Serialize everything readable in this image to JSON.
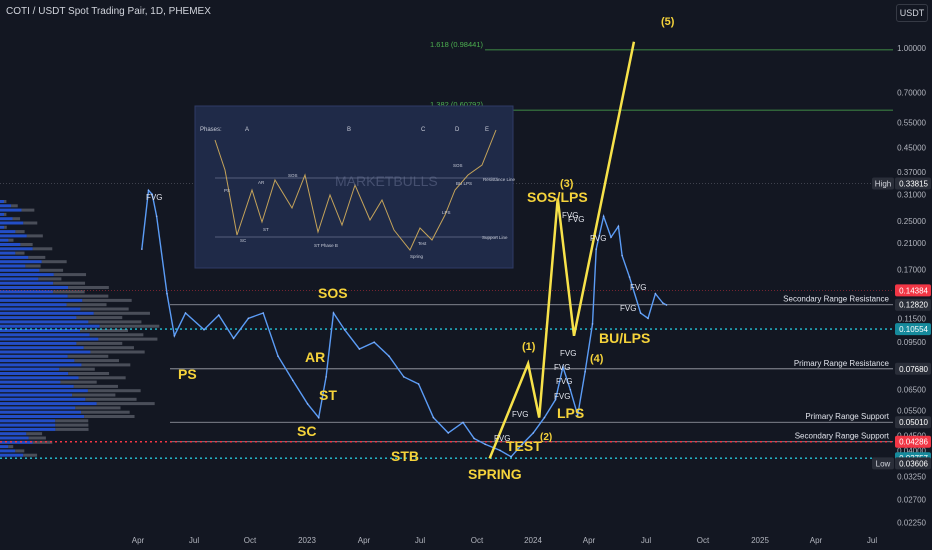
{
  "header": {
    "title": "COTI / USDT Spot Trading Pair, 1D, PHEMEX",
    "currency_button": "USDT"
  },
  "colors": {
    "background": "#131722",
    "price_line": "#5b9cf6",
    "wave": "#f7e24a",
    "label": "#f5d33b",
    "fib": "#4caf50",
    "highlight_red": "#f23645",
    "highlight_cyan": "#26c6da",
    "volume_blue": "#2962ff"
  },
  "chart_data": {
    "type": "line",
    "title": "COTI / USDT Spot Trading Pair, 1D, PHEMEX",
    "yscale": "log",
    "ylim": [
      0.0215,
      1.25
    ],
    "x_ticks": [
      "Apr",
      "Jul",
      "Oct",
      "2023",
      "Apr",
      "Jul",
      "Oct",
      "2024",
      "Apr",
      "Jul",
      "Oct",
      "2025",
      "Apr",
      "Jul"
    ],
    "y_ticks": [
      1.0,
      0.7,
      0.55,
      0.45,
      0.37,
      0.31,
      0.25,
      0.21,
      0.17,
      0.115,
      0.095,
      0.065,
      0.055,
      0.045,
      0.04,
      0.0325,
      0.027,
      0.0225
    ],
    "price_tags": [
      {
        "label": "High",
        "value": 0.33815
      },
      {
        "label": "",
        "value": 0.14384
      },
      {
        "label": "",
        "value": 0.1282
      },
      {
        "label": "",
        "value": 0.10554
      },
      {
        "label": "",
        "value": 0.0768
      },
      {
        "label": "",
        "value": 0.0501
      },
      {
        "label": "",
        "value": 0.04286
      },
      {
        "label": "",
        "value": 0.03757
      },
      {
        "label": "Low",
        "value": 0.03606
      }
    ],
    "levels": [
      {
        "name": "Secondary Range Resistance",
        "value": 0.1282
      },
      {
        "name": "Primary Range Resistance",
        "value": 0.0768
      },
      {
        "name": "Primary Range Support",
        "value": 0.0501
      },
      {
        "name": "Secondary Range Support",
        "value": 0.04286
      }
    ],
    "fib_levels": [
      {
        "label": "1.618 (0.98441)",
        "value": 0.98441
      },
      {
        "label": "1.382 (0.60792)",
        "value": 0.60792
      }
    ],
    "series": [
      {
        "name": "",
        "points": [
          [
            0.016,
            0.2
          ],
          [
            0.025,
            0.32
          ],
          [
            0.03,
            0.31
          ],
          [
            0.036,
            0.26
          ],
          [
            0.05,
            0.14
          ],
          [
            0.06,
            0.1
          ],
          [
            0.075,
            0.12
          ],
          [
            0.1,
            0.105
          ],
          [
            0.12,
            0.118
          ],
          [
            0.14,
            0.098
          ],
          [
            0.16,
            0.115
          ],
          [
            0.18,
            0.12
          ],
          [
            0.2,
            0.085
          ],
          [
            0.22,
            0.07
          ],
          [
            0.24,
            0.058
          ],
          [
            0.255,
            0.052
          ],
          [
            0.265,
            0.072
          ],
          [
            0.275,
            0.12
          ],
          [
            0.29,
            0.105
          ],
          [
            0.31,
            0.09
          ],
          [
            0.33,
            0.095
          ],
          [
            0.35,
            0.085
          ],
          [
            0.37,
            0.072
          ],
          [
            0.39,
            0.068
          ],
          [
            0.41,
            0.052
          ],
          [
            0.43,
            0.046
          ],
          [
            0.45,
            0.05
          ],
          [
            0.465,
            0.044
          ],
          [
            0.48,
            0.042
          ],
          [
            0.5,
            0.04
          ],
          [
            0.515,
            0.038
          ],
          [
            0.53,
            0.042
          ],
          [
            0.545,
            0.046
          ],
          [
            0.56,
            0.052
          ],
          [
            0.575,
            0.06
          ],
          [
            0.585,
            0.078
          ],
          [
            0.595,
            0.065
          ],
          [
            0.605,
            0.053
          ],
          [
            0.615,
            0.075
          ],
          [
            0.625,
            0.11
          ],
          [
            0.63,
            0.2
          ],
          [
            0.64,
            0.26
          ],
          [
            0.65,
            0.22
          ],
          [
            0.66,
            0.24
          ],
          [
            0.665,
            0.19
          ],
          [
            0.675,
            0.16
          ],
          [
            0.69,
            0.12
          ],
          [
            0.7,
            0.115
          ],
          [
            0.71,
            0.14
          ],
          [
            0.72,
            0.13
          ],
          [
            0.725,
            0.128
          ]
        ]
      }
    ],
    "annotations": [
      {
        "text": "PS",
        "x": "Apr 2022"
      },
      {
        "text": "SC",
        "x": "Nov 2022"
      },
      {
        "text": "AR",
        "x": "Dec 2022"
      },
      {
        "text": "ST",
        "x": "Jan 2023"
      },
      {
        "text": "SOS",
        "x": "Jan 2023"
      },
      {
        "text": "STB",
        "x": "Jul 2023"
      },
      {
        "text": "SPRING",
        "x": "Oct 2023"
      },
      {
        "text": "TEST",
        "x": "Nov 2023"
      },
      {
        "text": "(1)",
        "x": "Jan 2024"
      },
      {
        "text": "(2)",
        "x": "Feb 2024"
      },
      {
        "text": "LPS",
        "x": "Feb 2024"
      },
      {
        "text": "(3)",
        "x": "Mar 2024"
      },
      {
        "text": "SOS/LPS",
        "x": "Mar 2024"
      },
      {
        "text": "(4)",
        "x": "May 2024"
      },
      {
        "text": "BU/LPS",
        "x": "May 2024"
      },
      {
        "text": "(5)",
        "x": "Aug 2024"
      }
    ],
    "fvg_labels": [
      "FVG",
      "FVG",
      "FVG",
      "FVG",
      "FVG",
      "FVG",
      "FVG",
      "FVG",
      "FVG",
      "FVG",
      "FVG",
      "FVG"
    ],
    "inset": {
      "phases_label": "Phases:",
      "phases": [
        "A",
        "B",
        "C",
        "D",
        "E"
      ],
      "labels": [
        "PS",
        "AR",
        "SC",
        "ST",
        "SOS",
        "ST Phase B",
        "Spring",
        "Test",
        "LPS",
        "SOS",
        "BU LPS",
        "Resistance Line",
        "Support Line",
        "MARKETBULLS"
      ]
    }
  }
}
